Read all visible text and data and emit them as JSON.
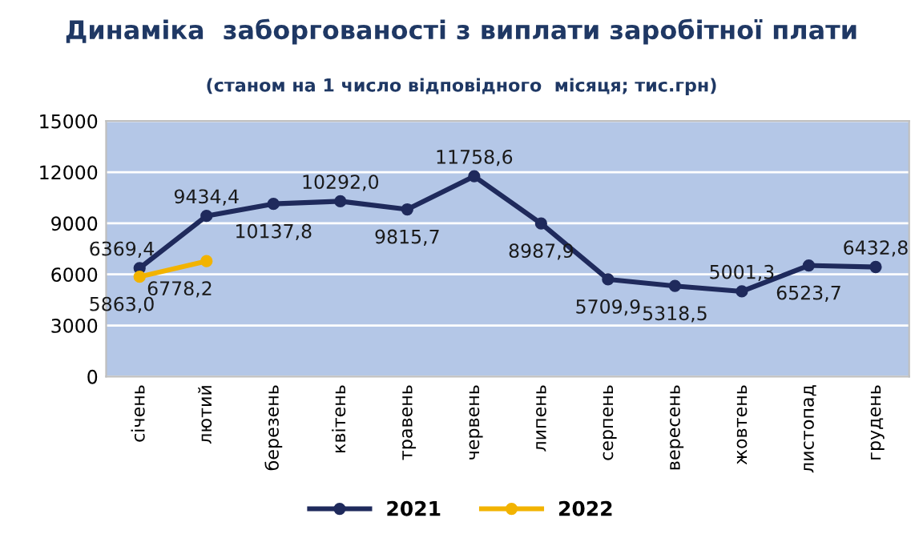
{
  "chart_data": {
    "type": "line",
    "title": "Динаміка  заборгованості з виплати заробітної плати",
    "subtitle": "(станом на 1 число відповідного  місяця; тис.грн)",
    "categories": [
      "січень",
      "лютий",
      "березень",
      "квітень",
      "травень",
      "червень",
      "липень",
      "серпень",
      "вересень",
      "жовтень",
      "листопад",
      "грудень"
    ],
    "series": [
      {
        "name": "2021",
        "color": "#1f2a5c",
        "values": [
          6369.4,
          9434.4,
          10137.8,
          10292.0,
          9815.7,
          11758.6,
          8987.9,
          5709.9,
          5318.5,
          5001.3,
          6523.7,
          6432.8
        ],
        "value_labels": [
          "6369,4",
          "9434,4",
          "10137,8",
          "10292,0",
          "9815,7",
          "11758,6",
          "8987,9",
          "5709,9",
          "5318,5",
          "5001,3",
          "6523,7",
          "6432,8"
        ]
      },
      {
        "name": "2022",
        "color": "#f2b300",
        "values": [
          5863.0,
          6778.2,
          null,
          null,
          null,
          null,
          null,
          null,
          null,
          null,
          null,
          null
        ],
        "value_labels": [
          "5863,0",
          "6778,2",
          null,
          null,
          null,
          null,
          null,
          null,
          null,
          null,
          null,
          null
        ]
      }
    ],
    "ylim": [
      0,
      15000
    ],
    "yticks": [
      0,
      3000,
      6000,
      9000,
      12000,
      15000
    ],
    "grid": "y",
    "legend": "bottom",
    "marker": "circle",
    "line_style": "solid"
  }
}
